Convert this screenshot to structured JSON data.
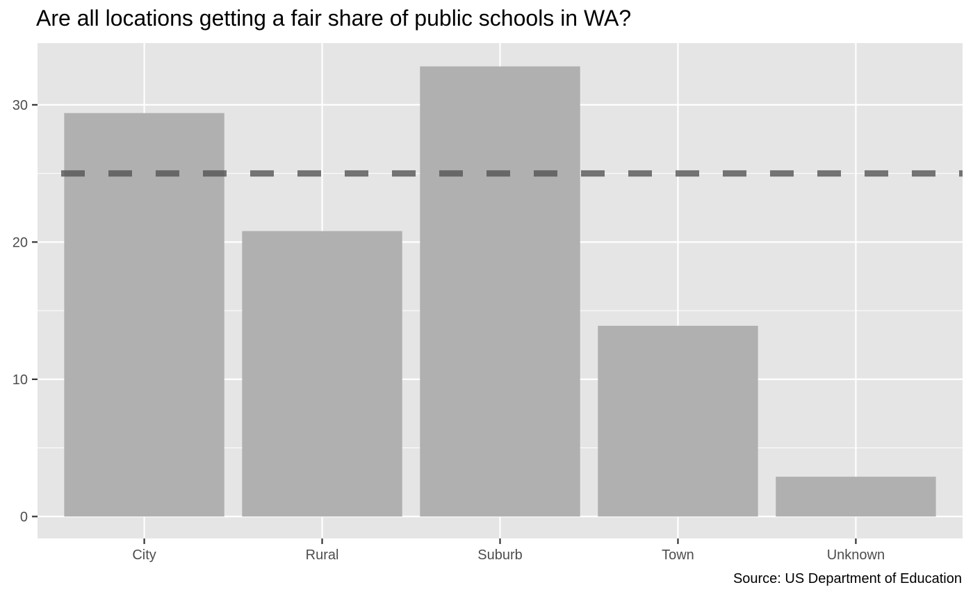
{
  "chart_data": {
    "type": "bar",
    "title": "Are all locations getting a fair share of public schools in WA?",
    "caption": "Source: US Department of Education",
    "xlabel": "",
    "ylabel": "",
    "categories": [
      "City",
      "Rural",
      "Suburb",
      "Town",
      "Unknown"
    ],
    "values": [
      29.4,
      20.8,
      32.8,
      13.9,
      2.9
    ],
    "reference_line": {
      "value": 25,
      "style": "dashed"
    },
    "ylim": [
      -1.6,
      34.5
    ],
    "y_ticks": [
      0,
      10,
      20,
      30
    ],
    "y_tick_labels": [
      "0",
      "10",
      "20",
      "30"
    ],
    "grid": true,
    "colors": {
      "bar": "#b0b0b0",
      "panel_background": "#e5e5e5",
      "grid": "#ffffff",
      "reference_line": "#555555"
    }
  }
}
